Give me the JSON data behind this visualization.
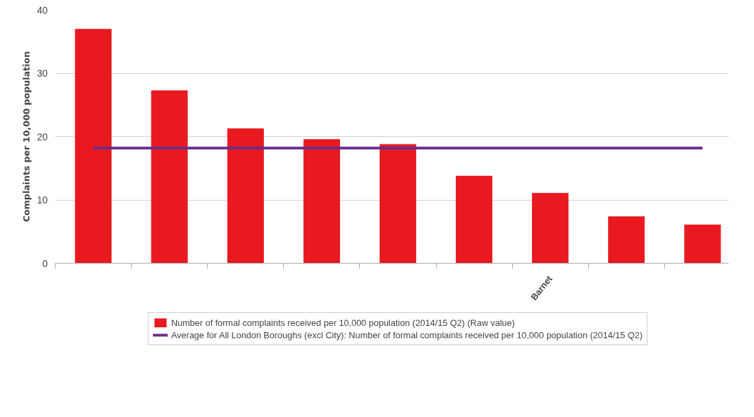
{
  "chart_data": {
    "type": "bar",
    "ylabel": "Complaints per 10,000 population",
    "categories": [
      null,
      null,
      null,
      null,
      null,
      null,
      "Barnet",
      null,
      null
    ],
    "series": [
      {
        "name": "Number of formal complaints received per 10,000 population (2014/15 Q2) (Raw value)",
        "color": "#e8191f",
        "values": [
          37.0,
          27.3,
          21.3,
          19.6,
          18.8,
          13.8,
          11.1,
          7.4,
          6.1
        ]
      },
      {
        "name": "Average for All London Boroughs (excl City): Number of formal complaints received per 10,000 population (2014/15 Q2)",
        "type": "line",
        "color": "#6a2c8e",
        "values": [
          18.2,
          18.2,
          18.2,
          18.2,
          18.2,
          18.2,
          18.2,
          18.2,
          18.2
        ]
      }
    ],
    "ylim": [
      0,
      40
    ],
    "yticks": [
      0,
      10,
      20,
      30,
      40
    ],
    "grid": "y",
    "legend": "bottom"
  }
}
